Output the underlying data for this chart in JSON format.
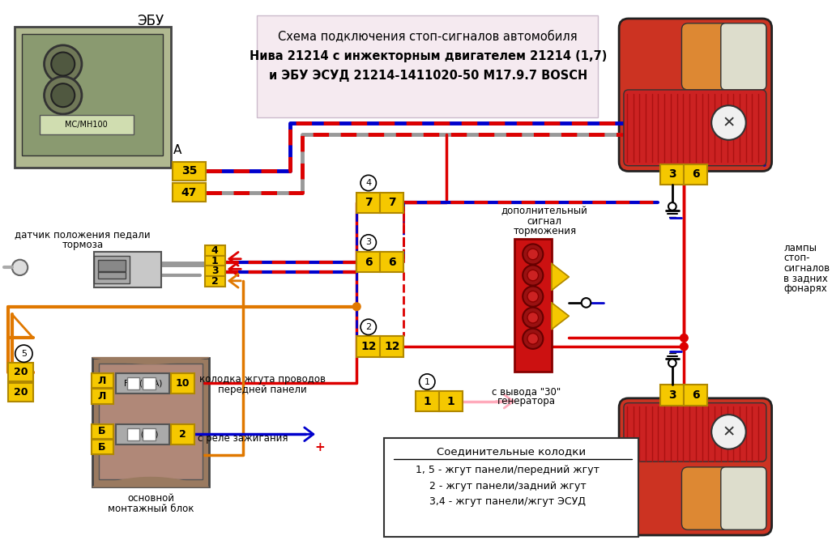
{
  "title_lines": [
    "Схема подключения стоп-сигналов автомобиля",
    "Нива 21214 с инжекторным двигателем 21214 (1,7)",
    "и ЭБУ ЭСУД 21214-1411020-50 М17.9.7 BOSCH"
  ],
  "title_bg": "#f5eaf0",
  "bg_color": "#ffffff",
  "yellow": "#f5c800",
  "yellow_border": "#b08800",
  "red": "#dd0000",
  "blue": "#0000cc",
  "orange": "#e07800",
  "gray": "#aaaaaa",
  "pink": "#ffaabb",
  "black": "#000000",
  "legend_title": "Соединительные колодки",
  "legend_lines": [
    "1, 5 - жгут панели/передний жгут",
    "2 - жгут панели/задний жгут",
    "3,4 - жгут панели/жгут ЭСУД"
  ],
  "ebu_label": "ЭБУ",
  "a_label": "А",
  "sensor_label1": "датчик положения педали",
  "sensor_label2": "тормоза",
  "connector_label1": "колодка жгута проводов",
  "connector_label2": "передней панели",
  "gen_label1": "с вывода \"30\"",
  "gen_label2": "генератора",
  "relay_label": "с реле зажигания",
  "block_label1": "основной",
  "block_label2": "монтажный блок",
  "add_brake_label1": "дополнительный",
  "add_brake_label2": "сигнал",
  "add_brake_label3": "торможения",
  "lamp_label1": "лампы",
  "lamp_label2": "стоп-",
  "lamp_label3": "сигналов",
  "lamp_label4": "в задних",
  "lamp_label5": "фонарях"
}
